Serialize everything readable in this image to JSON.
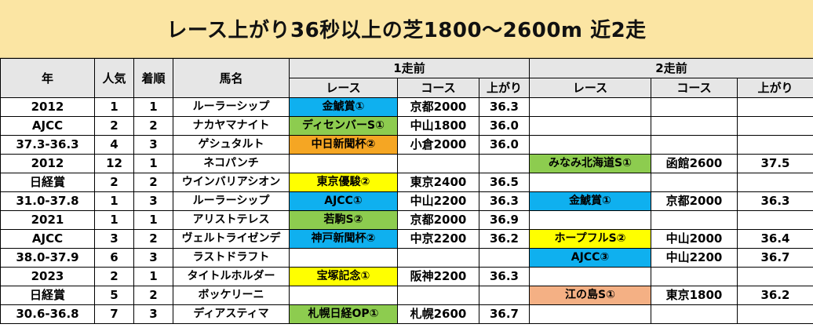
{
  "title": "レース上がり36秒以上の芝1800〜2600m 近2走",
  "headers": {
    "year": "年",
    "popularity": "人気",
    "finish": "着順",
    "horse": "馬名",
    "prev1": "1走前",
    "prev2": "2走前",
    "race": "レース",
    "course": "コース",
    "agari": "上がり"
  },
  "colors": {
    "title_bg": "#fbe5a3",
    "header_bg": "#e6e6e6",
    "blue": "#0fb0ef",
    "green": "#8dcc4f",
    "orange": "#f5a623",
    "yellow": "#ffff00",
    "salmon": "#f4b084"
  },
  "rows": [
    {
      "year": "2012",
      "pop": "1",
      "fin": "1",
      "horse": "ルーラーシップ",
      "r1": {
        "race": "金鯱賞①",
        "color": "blue",
        "course": "京都2000",
        "agari": "36.3"
      },
      "r2": {
        "race": "",
        "color": "none",
        "course": "",
        "agari": ""
      }
    },
    {
      "year": "AJCC",
      "pop": "2",
      "fin": "2",
      "horse": "ナカヤマナイト",
      "r1": {
        "race": "ディセンバーS①",
        "color": "green",
        "course": "中山1800",
        "agari": "36.0"
      },
      "r2": {
        "race": "",
        "color": "none",
        "course": "",
        "agari": ""
      }
    },
    {
      "year": "37.3-36.3",
      "pop": "4",
      "fin": "3",
      "horse": "ゲシュタルト",
      "r1": {
        "race": "中日新聞杯②",
        "color": "orange",
        "course": "小倉2000",
        "agari": "36.0"
      },
      "r2": {
        "race": "",
        "color": "none",
        "course": "",
        "agari": ""
      }
    },
    {
      "year": "2012",
      "pop": "12",
      "fin": "1",
      "horse": "ネコパンチ",
      "r1": {
        "race": "",
        "color": "none",
        "course": "",
        "agari": ""
      },
      "r2": {
        "race": "みなみ北海道S①",
        "color": "green",
        "course": "函館2600",
        "agari": "37.5"
      }
    },
    {
      "year": "日経賞",
      "pop": "2",
      "fin": "2",
      "horse": "ウインバリアシオン",
      "r1": {
        "race": "東京優駿②",
        "color": "yellow",
        "course": "東京2400",
        "agari": "36.5"
      },
      "r2": {
        "race": "",
        "color": "none",
        "course": "",
        "agari": ""
      }
    },
    {
      "year": "31.0-37.8",
      "pop": "1",
      "fin": "3",
      "horse": "ルーラーシップ",
      "r1": {
        "race": "AJCC①",
        "color": "blue",
        "course": "中山2200",
        "agari": "36.3"
      },
      "r2": {
        "race": "金鯱賞①",
        "color": "blue",
        "course": "京都2000",
        "agari": "36.3"
      }
    },
    {
      "year": "2021",
      "pop": "1",
      "fin": "1",
      "horse": "アリストテレス",
      "r1": {
        "race": "若駒S②",
        "color": "green",
        "course": "京都2000",
        "agari": "36.9"
      },
      "r2": {
        "race": "",
        "color": "none",
        "course": "",
        "agari": ""
      }
    },
    {
      "year": "AJCC",
      "pop": "3",
      "fin": "2",
      "horse": "ヴェルトライゼンデ",
      "r1": {
        "race": "神戸新聞杯②",
        "color": "blue",
        "course": "中京2200",
        "agari": "36.2"
      },
      "r2": {
        "race": "ホープフルS②",
        "color": "yellow",
        "course": "中山2000",
        "agari": "36.4"
      }
    },
    {
      "year": "38.0-37.9",
      "pop": "6",
      "fin": "3",
      "horse": "ラストドラフト",
      "r1": {
        "race": "",
        "color": "none",
        "course": "",
        "agari": ""
      },
      "r2": {
        "race": "AJCC③",
        "color": "blue",
        "course": "中山2200",
        "agari": "36.7"
      }
    },
    {
      "year": "2023",
      "pop": "2",
      "fin": "1",
      "horse": "タイトルホルダー",
      "r1": {
        "race": "宝塚記念①",
        "color": "yellow",
        "course": "阪神2200",
        "agari": "36.3"
      },
      "r2": {
        "race": "",
        "color": "none",
        "course": "",
        "agari": ""
      }
    },
    {
      "year": "日経賞",
      "pop": "5",
      "fin": "2",
      "horse": "ボッケリーニ",
      "r1": {
        "race": "",
        "color": "none",
        "course": "",
        "agari": ""
      },
      "r2": {
        "race": "江の島S①",
        "color": "salmon",
        "course": "東京1800",
        "agari": "36.2"
      }
    },
    {
      "year": "30.6-36.8",
      "pop": "7",
      "fin": "3",
      "horse": "ディアスティマ",
      "r1": {
        "race": "札幌日経OP①",
        "color": "green",
        "course": "札幌2600",
        "agari": "36.7"
      },
      "r2": {
        "race": "",
        "color": "none",
        "course": "",
        "agari": ""
      }
    }
  ]
}
